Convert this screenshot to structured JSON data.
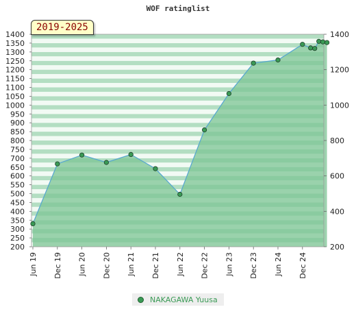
{
  "header": {
    "title": "WOF ratinglist",
    "period_badge": "2019-2025"
  },
  "chart_data": {
    "type": "area",
    "title": "WOF ratinglist",
    "xlabel": "",
    "ylabel": "",
    "x_tick_labels": [
      "Jun 19",
      "Dec 19",
      "Jun 20",
      "Dec 20",
      "Jun 21",
      "Dec 21",
      "Jun 22",
      "Dec 22",
      "Jun 23",
      "Dec 23",
      "Jun 24",
      "Dec 24"
    ],
    "ylim": [
      200,
      1400
    ],
    "left_axis_ticks": [
      200,
      250,
      300,
      350,
      400,
      450,
      500,
      550,
      600,
      650,
      700,
      750,
      800,
      850,
      900,
      950,
      1000,
      1050,
      1100,
      1150,
      1200,
      1250,
      1300,
      1350,
      1400
    ],
    "right_axis_ticks": [
      200,
      400,
      600,
      800,
      1000,
      1200,
      1400
    ],
    "grid": true,
    "legend": "bottom-center",
    "series": [
      {
        "name": "NAKAGAWA Yuusa",
        "color": "#3a9a55",
        "points": [
          {
            "x": "Jun 19",
            "y": 330
          },
          {
            "x": "Dec 19",
            "y": 668
          },
          {
            "x": "Jun 20",
            "y": 718
          },
          {
            "x": "Dec 20",
            "y": 676
          },
          {
            "x": "Jun 21",
            "y": 721
          },
          {
            "x": "Dec 21",
            "y": 641
          },
          {
            "x": "Jun 22",
            "y": 496
          },
          {
            "x": "Dec 22",
            "y": 860
          },
          {
            "x": "Jun 23",
            "y": 1065
          },
          {
            "x": "Dec 23",
            "y": 1237
          },
          {
            "x": "Jun 24",
            "y": 1255
          },
          {
            "x": "Dec 24",
            "y": 1343
          },
          {
            "x": "Feb 25",
            "y": 1323
          },
          {
            "x": "Mar 25",
            "y": 1320
          },
          {
            "x": "Apr 25",
            "y": 1360
          },
          {
            "x": "May 25",
            "y": 1357
          },
          {
            "x": "Jun 25",
            "y": 1353
          }
        ]
      }
    ]
  },
  "legend": {
    "label": "NAKAGAWA Yuusa"
  },
  "colors": {
    "series": "#3a9a55",
    "area": "#7cc494",
    "line": "#55a6d0",
    "background_band_dark": "#b3dec2",
    "background_band_light": "#f2faf4"
  }
}
